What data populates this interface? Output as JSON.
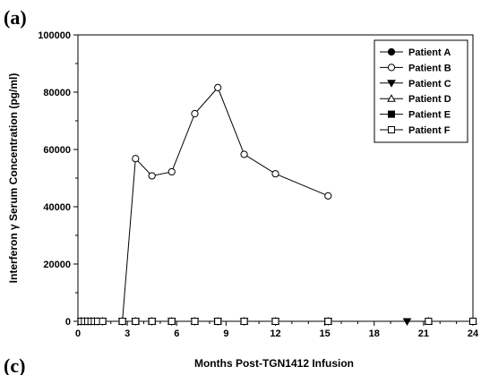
{
  "panel_label": "(a)",
  "next_panel_label": "(c)",
  "chart_data": {
    "type": "line",
    "xlabel": "Months Post-TGN1412 Infusion",
    "ylabel": "Interferon γ Serum Concentration (pg/ml)",
    "xlim": [
      0,
      24
    ],
    "ylim": [
      0,
      100000
    ],
    "xticks": [
      0,
      3,
      6,
      9,
      12,
      15,
      18,
      21,
      24
    ],
    "yticks": [
      0,
      20000,
      40000,
      60000,
      80000,
      100000
    ],
    "grid": false,
    "legend_position": "top-right",
    "series": [
      {
        "name": "Patient A",
        "marker": "circle-filled",
        "x": [
          0.2,
          0.4,
          0.6,
          0.8,
          1.0,
          1.2,
          1.5,
          2.7,
          3.5,
          4.5,
          5.7,
          7.1,
          8.5,
          10.1,
          12.0,
          15.2,
          21.3,
          24.0
        ],
        "y": [
          0,
          0,
          0,
          0,
          0,
          0,
          0,
          0,
          0,
          0,
          0,
          0,
          0,
          0,
          0,
          0,
          0,
          0
        ]
      },
      {
        "name": "Patient B",
        "marker": "circle-open",
        "x": [
          0.2,
          0.4,
          0.6,
          0.8,
          1.0,
          1.2,
          1.5,
          2.7,
          3.5,
          4.5,
          5.7,
          7.1,
          8.5,
          10.1,
          12.0,
          15.2
        ],
        "y": [
          0,
          0,
          0,
          0,
          0,
          0,
          0,
          0,
          56800,
          50800,
          52200,
          72500,
          81600,
          58300,
          51500,
          43800
        ]
      },
      {
        "name": "Patient C",
        "marker": "triangle-down-filled",
        "x": [
          0.2,
          0.4,
          0.6,
          0.8,
          1.0,
          1.2,
          1.5,
          2.7,
          3.5,
          4.5,
          5.7,
          7.1,
          8.5,
          10.1,
          12.0,
          15.2,
          20.0
        ],
        "y": [
          0,
          0,
          0,
          0,
          0,
          0,
          0,
          0,
          0,
          0,
          0,
          0,
          0,
          0,
          0,
          0,
          0
        ]
      },
      {
        "name": "Patient D",
        "marker": "triangle-up-open",
        "x": [
          0.2,
          0.4,
          0.6,
          0.8,
          1.0,
          1.2,
          1.5,
          2.7,
          3.5,
          4.5,
          5.7,
          7.1,
          8.5,
          10.1,
          12.0,
          15.2,
          21.3,
          24.0
        ],
        "y": [
          0,
          0,
          0,
          0,
          0,
          0,
          0,
          0,
          0,
          0,
          0,
          0,
          0,
          0,
          0,
          0,
          0,
          0
        ]
      },
      {
        "name": "Patient E",
        "marker": "square-filled",
        "x": [
          0.2,
          0.4,
          0.6,
          0.8,
          1.0,
          1.2,
          1.5,
          2.7,
          3.5,
          4.5,
          5.7,
          7.1,
          8.5,
          10.1,
          12.0,
          15.2,
          21.3,
          24.0
        ],
        "y": [
          0,
          0,
          0,
          0,
          0,
          0,
          0,
          0,
          0,
          0,
          0,
          0,
          0,
          0,
          0,
          0,
          0,
          0
        ]
      },
      {
        "name": "Patient F",
        "marker": "square-open",
        "x": [
          0.2,
          0.4,
          0.6,
          0.8,
          1.0,
          1.2,
          1.5,
          2.7,
          3.5,
          4.5,
          5.7,
          7.1,
          8.5,
          10.1,
          12.0,
          15.2,
          21.3,
          24.0
        ],
        "y": [
          0,
          0,
          0,
          0,
          0,
          0,
          0,
          0,
          0,
          0,
          0,
          0,
          0,
          0,
          0,
          0,
          0,
          0
        ]
      }
    ]
  }
}
